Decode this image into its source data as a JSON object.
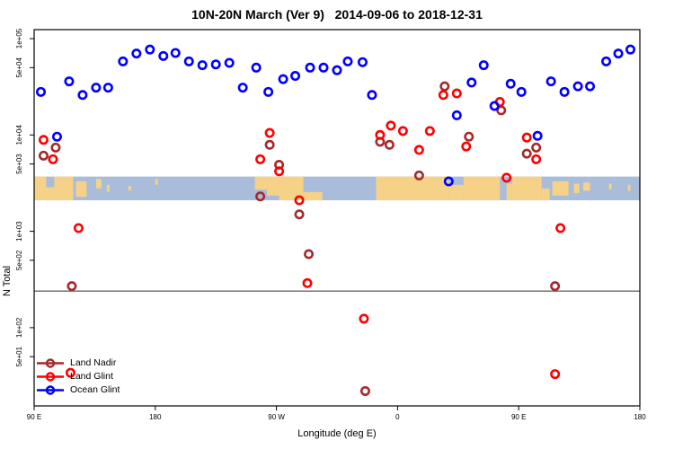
{
  "chart_data": {
    "type": "scatter",
    "title": "10N-20N March (Ver 9)   2014-09-06 to 2018-12-31",
    "xlabel": "Longitude (deg E)",
    "ylabel": "N Total",
    "x_axis": {
      "range": [
        90,
        540
      ],
      "ticks": [
        90,
        180,
        270,
        360,
        450,
        540
      ],
      "labels": [
        "90 E",
        "180",
        "90 W",
        "0",
        "90 E",
        "180"
      ],
      "note": "longitude wraps eastward starting at 90E"
    },
    "y_axis": {
      "scale": "log",
      "range": [
        15,
        124000
      ],
      "ticks": [
        100000,
        50000,
        10000,
        5000,
        1000,
        500,
        100,
        50
      ],
      "labels": [
        "1e+05",
        "5e+04",
        "1e+04",
        "5e+03",
        "1e+03",
        "5e+02",
        "1e+02",
        "5e+01"
      ]
    },
    "reference_line_value": 240,
    "grid": false,
    "legend_position": "bottom-left",
    "series": [
      {
        "name": "Land Nadir",
        "color": "#A52A2A",
        "points": [
          [
            106,
            7400
          ],
          [
            97,
            6100
          ],
          [
            265,
            7900
          ],
          [
            272,
            4900
          ],
          [
            258,
            2300
          ],
          [
            287,
            1500
          ],
          [
            294,
            580
          ],
          [
            118,
            270
          ],
          [
            347,
            8500
          ],
          [
            354,
            7900
          ],
          [
            376,
            3800
          ],
          [
            395,
            32000
          ],
          [
            413,
            9600
          ],
          [
            437,
            18000
          ],
          [
            456,
            6400
          ],
          [
            463,
            7400
          ],
          [
            477,
            270
          ],
          [
            336,
            22
          ]
        ]
      },
      {
        "name": "Land Glint",
        "color": "#FF0000",
        "points": [
          [
            97,
            8900
          ],
          [
            104,
            5600
          ],
          [
            117,
            34
          ],
          [
            123,
            1080
          ],
          [
            258,
            5600
          ],
          [
            265,
            10500
          ],
          [
            272,
            4200
          ],
          [
            287,
            2100
          ],
          [
            293,
            290
          ],
          [
            335,
            124
          ],
          [
            347,
            10000
          ],
          [
            355,
            12500
          ],
          [
            364,
            11000
          ],
          [
            376,
            7000
          ],
          [
            384,
            11000
          ],
          [
            394,
            26000
          ],
          [
            404,
            27000
          ],
          [
            411,
            7600
          ],
          [
            436,
            22000
          ],
          [
            441,
            3600
          ],
          [
            456,
            9400
          ],
          [
            463,
            5600
          ],
          [
            477,
            33
          ],
          [
            481,
            1080
          ]
        ]
      },
      {
        "name": "Ocean Glint",
        "color": "#0000FF",
        "points": [
          [
            95,
            28000
          ],
          [
            107,
            9600
          ],
          [
            116,
            36000
          ],
          [
            126,
            26000
          ],
          [
            136,
            31000
          ],
          [
            145,
            31000
          ],
          [
            156,
            58000
          ],
          [
            166,
            70000
          ],
          [
            176,
            77000
          ],
          [
            186,
            66000
          ],
          [
            195,
            71000
          ],
          [
            205,
            58000
          ],
          [
            215,
            53000
          ],
          [
            225,
            54000
          ],
          [
            235,
            56000
          ],
          [
            245,
            31000
          ],
          [
            255,
            50000
          ],
          [
            264,
            28000
          ],
          [
            275,
            38000
          ],
          [
            284,
            41000
          ],
          [
            295,
            50000
          ],
          [
            305,
            50000
          ],
          [
            315,
            47000
          ],
          [
            323,
            58000
          ],
          [
            334,
            57000
          ],
          [
            341,
            26000
          ],
          [
            398,
            3300
          ],
          [
            404,
            16000
          ],
          [
            415,
            35000
          ],
          [
            424,
            53000
          ],
          [
            432,
            20000
          ],
          [
            444,
            34000
          ],
          [
            452,
            28000
          ],
          [
            464,
            9800
          ],
          [
            474,
            36000
          ],
          [
            484,
            28000
          ],
          [
            494,
            32000
          ],
          [
            503,
            32000
          ],
          [
            515,
            58000
          ],
          [
            524,
            70000
          ],
          [
            533,
            77000
          ]
        ]
      }
    ],
    "map_band": {
      "value_top": 3700,
      "value_bottom": 2100,
      "ocean_color": "#A9BCD9",
      "land_color": "#F5D287",
      "land_segments": [
        [
          90,
          99,
          0,
          1
        ],
        [
          99,
          105,
          0.45,
          1
        ],
        [
          105,
          119,
          0,
          1
        ],
        [
          121,
          129,
          0.2,
          0.85
        ],
        [
          136,
          140,
          0.1,
          0.5
        ],
        [
          144,
          146,
          0.35,
          0.65
        ],
        [
          160,
          162,
          0.4,
          0.6
        ],
        [
          180,
          182,
          0.1,
          0.35
        ],
        [
          254,
          263,
          0,
          0.55
        ],
        [
          263,
          272,
          0,
          0.8
        ],
        [
          272,
          290,
          0,
          1
        ],
        [
          290,
          304,
          0.65,
          1
        ],
        [
          344,
          398,
          0,
          1
        ],
        [
          398,
          409,
          0.35,
          1
        ],
        [
          409,
          436,
          0,
          1
        ],
        [
          441,
          445,
          0.3,
          1
        ],
        [
          445,
          467,
          0,
          1
        ],
        [
          467,
          473,
          0.5,
          1
        ],
        [
          475,
          487,
          0.2,
          0.8
        ],
        [
          491,
          495,
          0.3,
          0.7
        ],
        [
          498,
          503,
          0.25,
          0.6
        ],
        [
          517,
          519,
          0.3,
          0.55
        ],
        [
          531,
          533,
          0.35,
          0.6
        ]
      ]
    }
  },
  "legend": {
    "items": [
      {
        "label": "Land Nadir"
      },
      {
        "label": "Land Glint"
      },
      {
        "label": "Ocean Glint"
      }
    ]
  }
}
